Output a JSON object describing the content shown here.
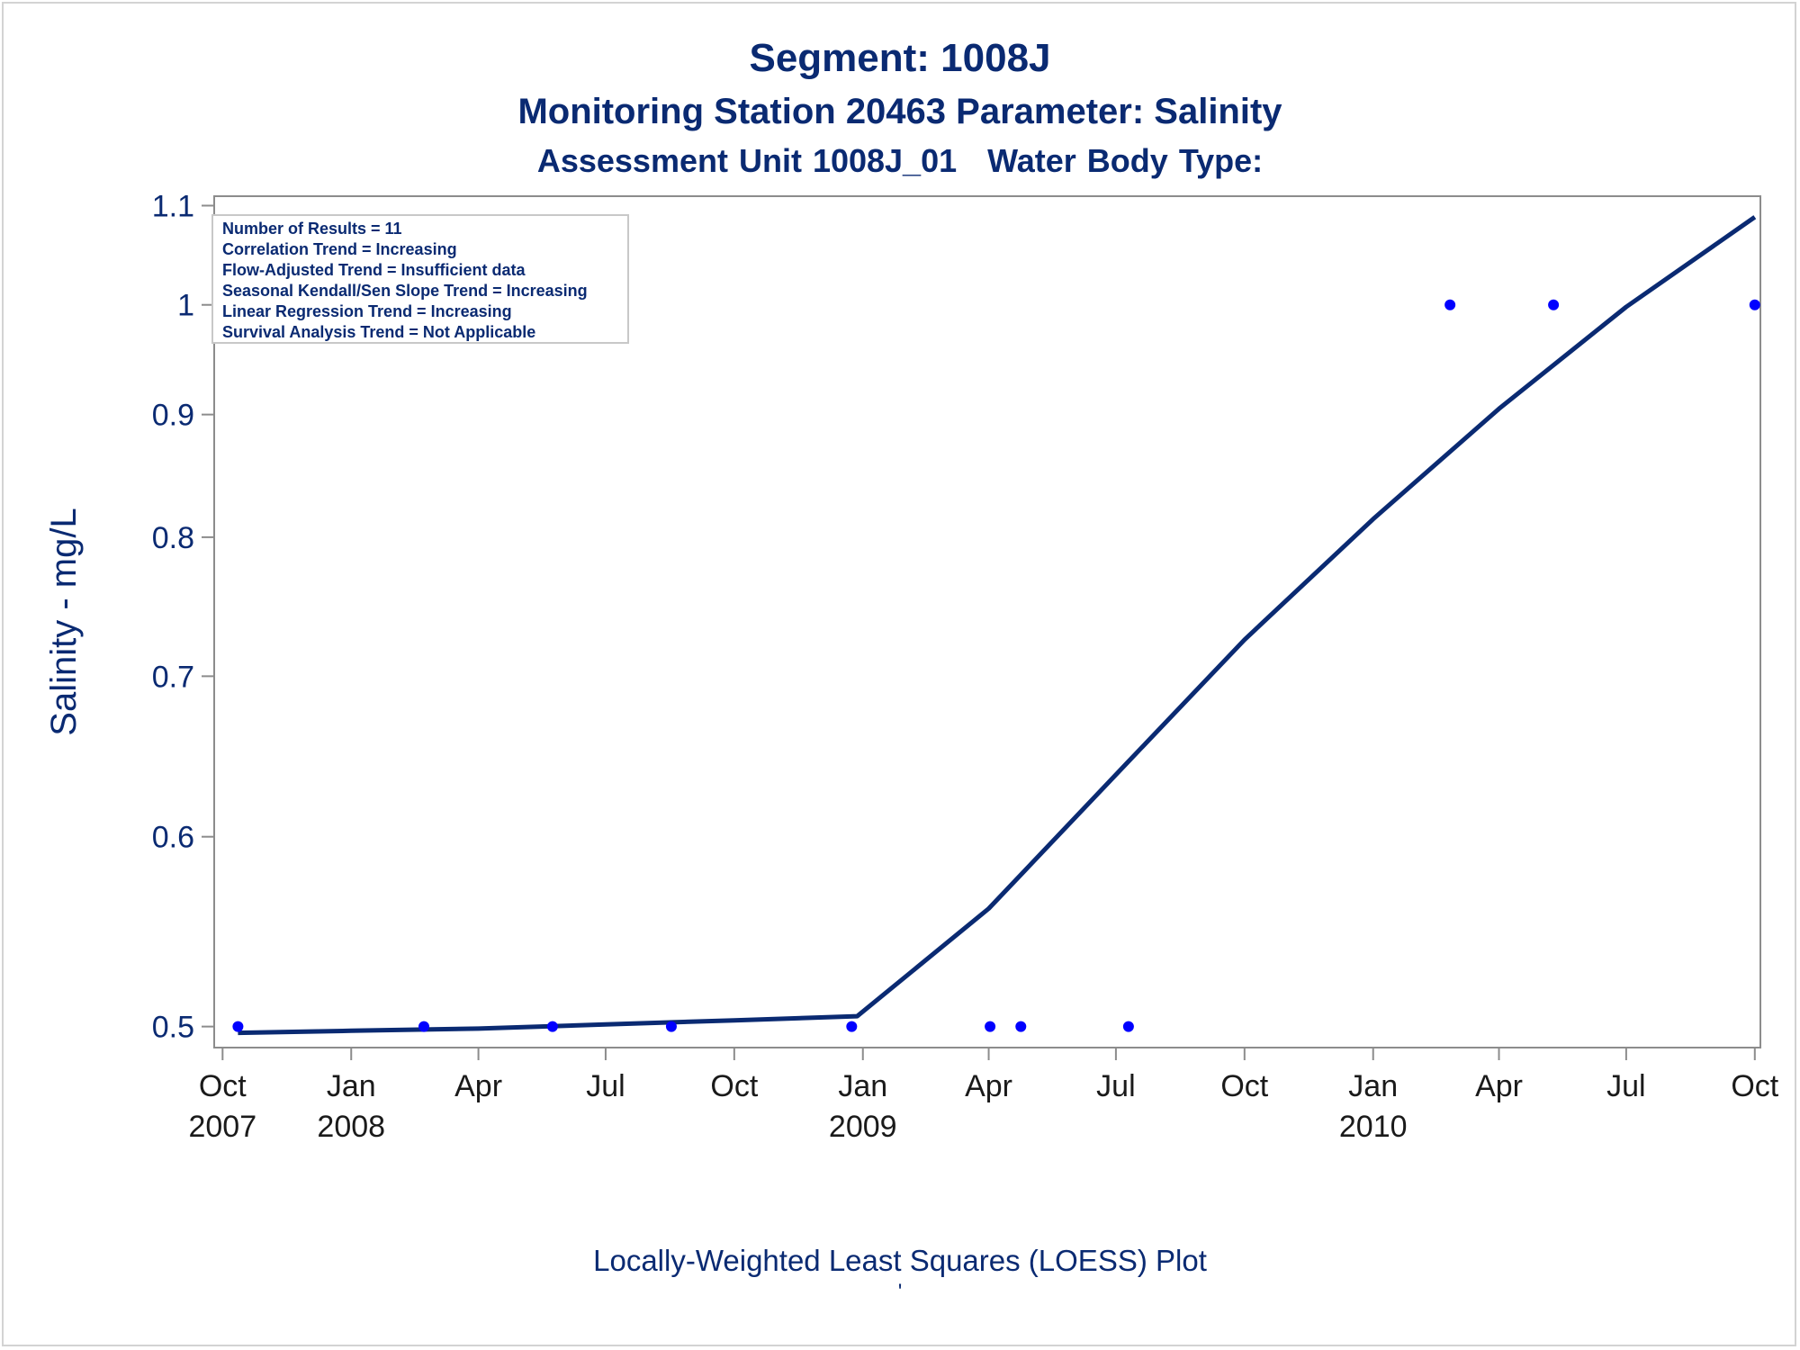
{
  "titles": {
    "line1": "Segment: 1008J",
    "line2": "Monitoring Station 20463 Parameter: Salinity",
    "line3a": "Assessment Unit 1008J_01",
    "line3b": "Water Body Type:"
  },
  "footnotes": {
    "line1": "Locally-Weighted Least Squares (LOESS) Plot",
    "line2": "'"
  },
  "inset_box": {
    "lines": [
      "Number of Results = 11",
      "Correlation Trend = Increasing",
      "Flow-Adjusted Trend = Insufficient data",
      "Seasonal Kendall/Sen Slope Trend = Increasing",
      "Linear Regression Trend = Increasing",
      "Survival Analysis Trend = Not Applicable"
    ]
  },
  "colors": {
    "text": "#0a2a72",
    "points": "#0000ff",
    "loess_line": "#0a2a72",
    "axis": "#8c8c8c"
  },
  "chart_data": {
    "type": "scatter",
    "ylabel": "Salinity - mg/L",
    "xlabel": "",
    "xlim": [
      "2007-09-25",
      "2010-10-05"
    ],
    "ylim": [
      0.49,
      1.11
    ],
    "y_scale": "log",
    "grid": false,
    "x_ticks": [
      {
        "date": "2007-10-01",
        "label": "Oct",
        "sublabel": "2007"
      },
      {
        "date": "2008-01-01",
        "label": "Jan",
        "sublabel": "2008"
      },
      {
        "date": "2008-04-01",
        "label": "Apr",
        "sublabel": ""
      },
      {
        "date": "2008-07-01",
        "label": "Jul",
        "sublabel": ""
      },
      {
        "date": "2008-10-01",
        "label": "Oct",
        "sublabel": ""
      },
      {
        "date": "2009-01-01",
        "label": "Jan",
        "sublabel": "2009"
      },
      {
        "date": "2009-04-01",
        "label": "Apr",
        "sublabel": ""
      },
      {
        "date": "2009-07-01",
        "label": "Jul",
        "sublabel": ""
      },
      {
        "date": "2009-10-01",
        "label": "Oct",
        "sublabel": ""
      },
      {
        "date": "2010-01-01",
        "label": "Jan",
        "sublabel": "2010"
      },
      {
        "date": "2010-04-01",
        "label": "Apr",
        "sublabel": ""
      },
      {
        "date": "2010-07-01",
        "label": "Jul",
        "sublabel": ""
      },
      {
        "date": "2010-10-01",
        "label": "Oct",
        "sublabel": ""
      }
    ],
    "y_ticks": [
      {
        "value": 0.5,
        "label": "0.5"
      },
      {
        "value": 0.6,
        "label": "0.6"
      },
      {
        "value": 0.7,
        "label": "0.7"
      },
      {
        "value": 0.8,
        "label": "0.8"
      },
      {
        "value": 0.9,
        "label": "0.9"
      },
      {
        "value": 1.0,
        "label": "1"
      },
      {
        "value": 1.1,
        "label": "1.1"
      }
    ],
    "series": [
      {
        "type": "scatter",
        "points": [
          {
            "x": "2007-10-12",
            "y": 0.5
          },
          {
            "x": "2008-02-22",
            "y": 0.5
          },
          {
            "x": "2008-05-24",
            "y": 0.5
          },
          {
            "x": "2008-08-17",
            "y": 0.5
          },
          {
            "x": "2008-12-24",
            "y": 0.5
          },
          {
            "x": "2009-04-02",
            "y": 0.5
          },
          {
            "x": "2009-04-24",
            "y": 0.5
          },
          {
            "x": "2009-07-10",
            "y": 0.5
          },
          {
            "x": "2010-02-25",
            "y": 1.0
          },
          {
            "x": "2010-05-10",
            "y": 1.0
          },
          {
            "x": "2010-10-01",
            "y": 1.0
          }
        ]
      },
      {
        "type": "line",
        "points": [
          {
            "x": "2007-10-12",
            "y": 0.497
          },
          {
            "x": "2008-01-01",
            "y": 0.498
          },
          {
            "x": "2008-04-01",
            "y": 0.499
          },
          {
            "x": "2008-07-01",
            "y": 0.501
          },
          {
            "x": "2008-10-01",
            "y": 0.503
          },
          {
            "x": "2008-12-28",
            "y": 0.505
          },
          {
            "x": "2009-04-01",
            "y": 0.56
          },
          {
            "x": "2009-07-10",
            "y": 0.645
          },
          {
            "x": "2009-10-01",
            "y": 0.725
          },
          {
            "x": "2010-01-01",
            "y": 0.814
          },
          {
            "x": "2010-04-01",
            "y": 0.905
          },
          {
            "x": "2010-07-01",
            "y": 0.998
          },
          {
            "x": "2010-10-01",
            "y": 1.088
          }
        ]
      }
    ]
  }
}
